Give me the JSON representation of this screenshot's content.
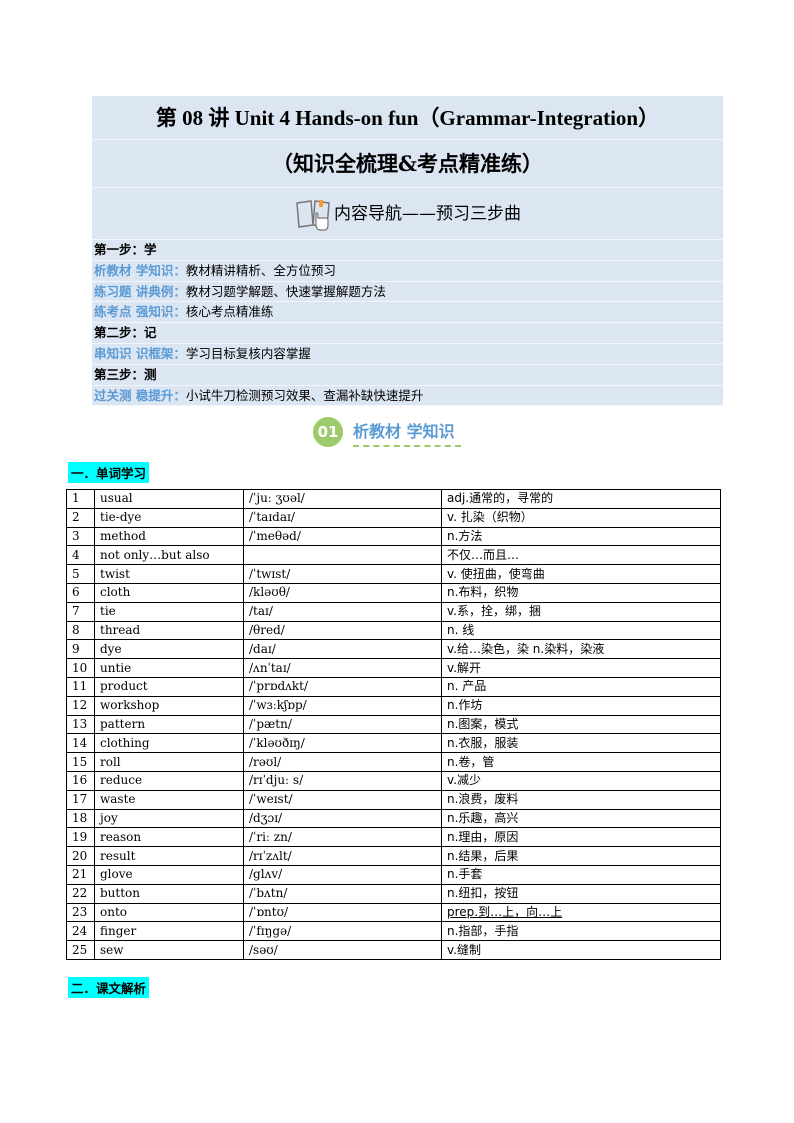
{
  "header": {
    "title": "第 08 讲  Unit 4 Hands-on fun（Grammar-Integration）",
    "subtitle": "（知识全梳理&考点精准练）",
    "nav_icon": "book-pointer-icon",
    "nav_title": "内容导航——预习三步曲"
  },
  "steps": [
    {
      "type": "step",
      "text": "第一步：学"
    },
    {
      "type": "item",
      "label": "析教材  学知识：",
      "text": "教材精讲精析、全方位预习"
    },
    {
      "type": "item",
      "label": "练习题  讲典例：",
      "text": "教材习题学解题、快速掌握解题方法"
    },
    {
      "type": "item",
      "label": "练考点  强知识：",
      "text": "核心考点精准练"
    },
    {
      "type": "step",
      "text": "第二步：记"
    },
    {
      "type": "item",
      "label": "串知识  识框架：",
      "text": "学习目标复核内容掌握"
    },
    {
      "type": "step",
      "text": "第三步：测"
    },
    {
      "type": "item",
      "label": "过关测  稳提升：",
      "text": "小试牛刀检测预习效果、查漏补缺快速提升"
    }
  ],
  "badge": {
    "number": "01",
    "title": "析教材 学知识"
  },
  "section1": "一．单词学习",
  "section2": "二．课文解析",
  "vocab": [
    [
      "1",
      "usual",
      "/ˈjuː ʒʊəl/",
      "adj.通常的，寻常的"
    ],
    [
      "2",
      "tie-dye",
      "/ˈtaɪdaɪ/",
      "v. 扎染（织物）"
    ],
    [
      "3",
      "method",
      "/ˈmeθəd/",
      "n.方法"
    ],
    [
      "4",
      "not only…but also",
      "",
      "不仅…而且…"
    ],
    [
      "5",
      "twist",
      "/ˈtwɪst/",
      "v. 使扭曲，使弯曲"
    ],
    [
      "6",
      "cloth",
      "/kləʊθ/",
      "n.布料，织物"
    ],
    [
      "7",
      "tie",
      "/taɪ/",
      "v.系，拴，绑，捆"
    ],
    [
      "8",
      "thread",
      "/θred/",
      "n. 线"
    ],
    [
      "9",
      "dye",
      "/daɪ/",
      "v.给…染色，染 n.染料，染液"
    ],
    [
      "10",
      "untie",
      "/ʌnˈtaɪ/",
      "v.解开"
    ],
    [
      "11",
      "product",
      "/ˈprɒdʌkt/",
      "n. 产品"
    ],
    [
      "12",
      "workshop",
      "/ˈwɜːkʃɒp/",
      "n.作坊"
    ],
    [
      "13",
      "pattern",
      "/ˈpætn/",
      "n.图案，模式"
    ],
    [
      "14",
      "clothing",
      "/ˈkləʊðɪŋ/",
      "n.衣服，服装"
    ],
    [
      "15",
      "roll",
      "/rəʊl/",
      "n.卷，管"
    ],
    [
      "16",
      "reduce",
      "/rɪˈdjuː s/",
      "v.减少"
    ],
    [
      "17",
      "waste",
      "/ˈweɪst/",
      "n.浪费，废料"
    ],
    [
      "18",
      "joy",
      "/dʒɔɪ/",
      "n.乐趣，高兴"
    ],
    [
      "19",
      "reason",
      "/ˈriː zn/",
      "n.理由，原因"
    ],
    [
      "20",
      "result",
      "/rɪˈzʌlt/",
      "n.结果，后果"
    ],
    [
      "21",
      "glove",
      "/glʌv/",
      "n.手套"
    ],
    [
      "22",
      "button",
      "/ˈbʌtn/",
      "n.纽扣，按钮"
    ],
    [
      "23",
      "onto",
      "/ˈɒntʊ/",
      "prep.到…上，向…上"
    ],
    [
      "24",
      "finger",
      "/ˈfɪŋgə/",
      "n.指部，手指"
    ],
    [
      "25",
      "sew",
      "/səʊ/",
      "v.缝制"
    ]
  ]
}
